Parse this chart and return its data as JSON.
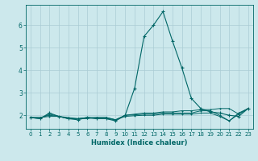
{
  "xlabel": "Humidex (Indice chaleur)",
  "background_color": "#cce8ec",
  "grid_color": "#aaccd4",
  "line_color": "#006666",
  "xlim": [
    -0.5,
    23.5
  ],
  "ylim": [
    1.4,
    6.9
  ],
  "yticks": [
    2,
    3,
    4,
    5,
    6
  ],
  "xticks": [
    0,
    1,
    2,
    3,
    4,
    5,
    6,
    7,
    8,
    9,
    10,
    11,
    12,
    13,
    14,
    15,
    16,
    17,
    18,
    19,
    20,
    21,
    22,
    23
  ],
  "series": [
    [
      1.9,
      1.85,
      2.1,
      1.95,
      1.85,
      1.8,
      1.9,
      1.85,
      1.85,
      1.75,
      2.0,
      3.2,
      5.5,
      6.0,
      6.6,
      5.3,
      4.1,
      2.75,
      2.3,
      2.15,
      2.1,
      2.0,
      1.95,
      2.3
    ],
    [
      1.9,
      1.85,
      2.05,
      1.95,
      1.9,
      1.85,
      1.9,
      1.85,
      1.85,
      1.8,
      2.0,
      2.05,
      2.1,
      2.1,
      2.15,
      2.15,
      2.2,
      2.2,
      2.25,
      2.25,
      2.3,
      2.3,
      2.05,
      2.3
    ],
    [
      1.9,
      1.9,
      2.0,
      1.95,
      1.85,
      1.85,
      1.9,
      1.9,
      1.9,
      1.8,
      2.0,
      2.02,
      2.05,
      2.05,
      2.1,
      2.1,
      2.1,
      2.1,
      2.2,
      2.2,
      2.0,
      1.75,
      2.1,
      2.3
    ],
    [
      1.9,
      1.9,
      1.95,
      1.95,
      1.85,
      1.85,
      1.85,
      1.9,
      1.9,
      1.8,
      1.95,
      1.98,
      2.0,
      2.0,
      2.05,
      2.05,
      2.05,
      2.05,
      2.1,
      2.1,
      1.95,
      1.75,
      2.05,
      2.3
    ]
  ]
}
